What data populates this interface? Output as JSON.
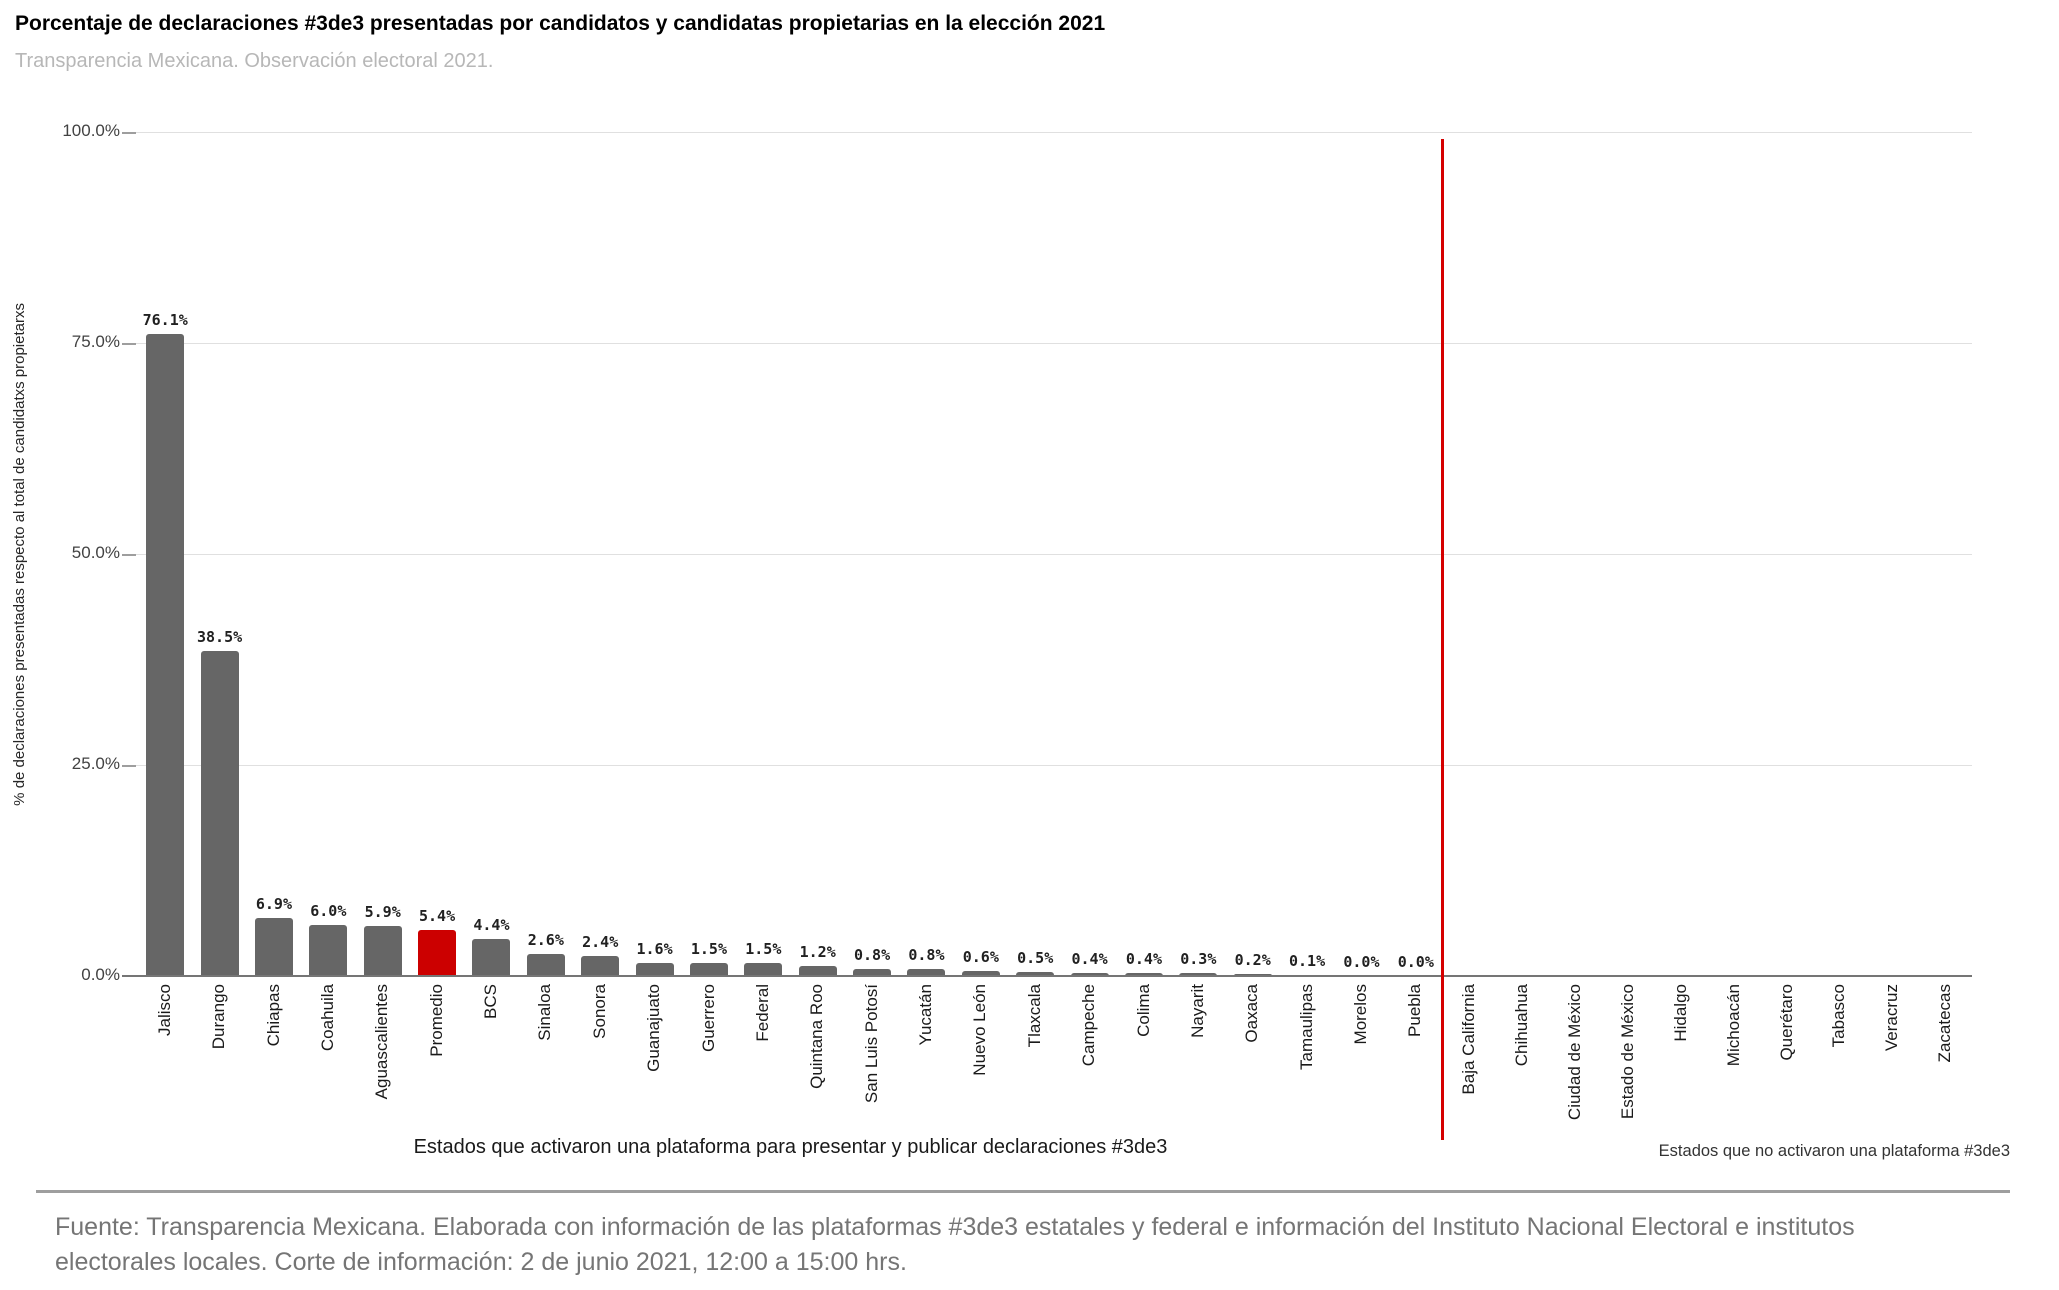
{
  "page": {
    "title": "Porcentaje de declaraciones #3de3 presentadas por candidatos y candidatas propietarias en la elección 2021",
    "subtitle": "Transparencia Mexicana. Observación electoral 2021.",
    "source_note_lines": [
      "Fuente: Transparencia Mexicana. Elaborada con información de las plataformas #3de3 estatales y federal e información del Instituto Nacional Electoral e institutos",
      "electorales locales. Corte de información: 2 de junio 2021, 12:00 a 15:00 hrs."
    ]
  },
  "chart_data": {
    "type": "bar",
    "title": "Porcentaje de declaraciones #3de3 presentadas por candidatos y candidatas propietarias en la elección 2021",
    "subtitle": "Transparencia Mexicana. Observación electoral 2021.",
    "ylabel": "% de declaraciones presentadas respecto al total de candidatxs propietarxs",
    "ylim": [
      0,
      100
    ],
    "grid": true,
    "legend": "none",
    "yticks": [
      {
        "value": 0,
        "label": "0.0%"
      },
      {
        "value": 25,
        "label": "25.0%"
      },
      {
        "value": 50,
        "label": "50.0%"
      },
      {
        "value": 75,
        "label": "75.0%"
      },
      {
        "value": 100,
        "label": "100.0%"
      }
    ],
    "bar_color": "#666666",
    "highlight_color": "#cc0000",
    "divider_color": "#d50000",
    "groups": [
      {
        "name": "Estados que activaron una plataforma para presentar y publicar declaraciones #3de3",
        "highlight_index": 5,
        "categories": [
          "Jalisco",
          "Durango",
          "Chiapas",
          "Coahuila",
          "Aguascalientes",
          "Promedio",
          "BCS",
          "Sinaloa",
          "Sonora",
          "Guanajuato",
          "Guerrero",
          "Federal",
          "Quintana Roo",
          "San Luis Potosí",
          "Yucatán",
          "Nuevo León",
          "Tlaxcala",
          "Campeche",
          "Colima",
          "Nayarit",
          "Oaxaca",
          "Tamaulipas",
          "Morelos",
          "Puebla"
        ],
        "values": [
          76.1,
          38.5,
          6.9,
          6.0,
          5.9,
          5.4,
          4.4,
          2.6,
          2.4,
          1.6,
          1.5,
          1.5,
          1.2,
          0.8,
          0.8,
          0.6,
          0.5,
          0.4,
          0.4,
          0.3,
          0.2,
          0.1,
          0.0,
          0.0
        ],
        "value_labels": [
          "76.1%",
          "38.5%",
          "6.9%",
          "6.0%",
          "5.9%",
          "5.4%",
          "4.4%",
          "2.6%",
          "2.4%",
          "1.6%",
          "1.5%",
          "1.5%",
          "1.2%",
          "0.8%",
          "0.8%",
          "0.6%",
          "0.5%",
          "0.4%",
          "0.4%",
          "0.3%",
          "0.2%",
          "0.1%",
          "0.0%",
          "0.0%"
        ],
        "categories_full": [
          "Jalisco",
          "Durango",
          "Chiapas",
          "Coahuila",
          "Aguascalientes",
          "Promedio",
          "BCS",
          "Sinaloa",
          "Sonora",
          "Guanajuato",
          "Guerrero",
          "Federal",
          "Quintana Roo",
          "San Luis Potosí",
          "Yucatán",
          "Nuevo León",
          "Tlaxcala",
          "Campeche",
          "Colima",
          "Nayarit",
          "Oaxaca",
          "Tamaulipas",
          "Morelos",
          "Puebla"
        ]
      },
      {
        "name": "Estados que no activaron una plataforma #3de3",
        "categories": [
          "Baja California",
          "Chihuahua",
          "Ciudad de México",
          "Estado de México",
          "Hidalgo",
          "Michoacán",
          "Querétaro",
          "Tabasco",
          "Veracruz",
          "Zacatecas"
        ],
        "values": []
      }
    ]
  }
}
